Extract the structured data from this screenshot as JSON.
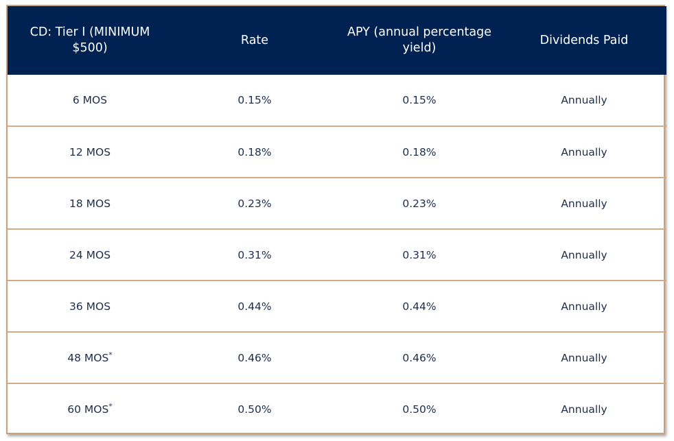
{
  "table": {
    "headers": [
      "CD: Tier I (MINIMUM $500)",
      "Rate",
      "APY (annual percentage yield)",
      "Dividends Paid"
    ],
    "rows": [
      {
        "term": "6 MOS",
        "mark": "",
        "rate": "0.15%",
        "apy": "0.15%",
        "dividends": "Annually"
      },
      {
        "term": "12 MOS",
        "mark": "",
        "rate": "0.18%",
        "apy": "0.18%",
        "dividends": "Annually"
      },
      {
        "term": "18 MOS",
        "mark": "",
        "rate": "0.23%",
        "apy": "0.23%",
        "dividends": "Annually"
      },
      {
        "term": "24 MOS",
        "mark": "",
        "rate": "0.31%",
        "apy": "0.31%",
        "dividends": "Annually"
      },
      {
        "term": "36 MOS",
        "mark": "",
        "rate": "0.44%",
        "apy": "0.44%",
        "dividends": "Annually"
      },
      {
        "term": "48 MOS",
        "mark": "*",
        "rate": "0.46%",
        "apy": "0.46%",
        "dividends": "Annually"
      },
      {
        "term": "60 MOS",
        "mark": "*",
        "rate": "0.50%",
        "apy": "0.50%",
        "dividends": "Annually"
      }
    ]
  },
  "colors": {
    "header_bg": "#002252",
    "border": "#d4a985",
    "text": "#1d2d4a"
  }
}
